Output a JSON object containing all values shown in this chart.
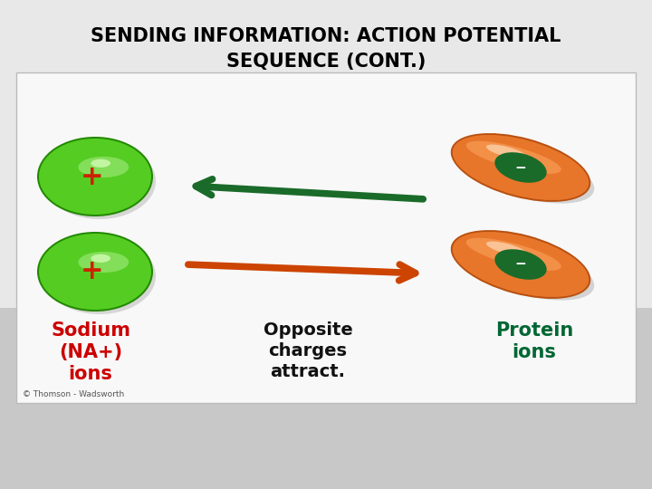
{
  "title_line1": "SENDING INFORMATION: ACTION POTENTIAL",
  "title_line2": "SEQUENCE (CONT.)",
  "title_fontsize": 15,
  "title_color": "#000000",
  "bg_top_color": "#e8e8e8",
  "bg_bottom_color": "#c8c8c8",
  "panel_bg": "#f8f8f8",
  "sodium_label": "Sodium\n(NA+)\nions",
  "sodium_color": "#cc0000",
  "middle_label": "Opposite\ncharges\nattract.",
  "middle_color": "#111111",
  "protein_label": "Protein\nions",
  "protein_color": "#006633",
  "copyright": "© Thomson - Wadsworth",
  "green_disk_color": "#55cc22",
  "green_plus_color": "#cc2200",
  "orange_pill_color": "#e8762a",
  "green_minus_color": "#1a6b2a",
  "arrow1_color": "#1a6b2a",
  "arrow2_color": "#cc4400"
}
